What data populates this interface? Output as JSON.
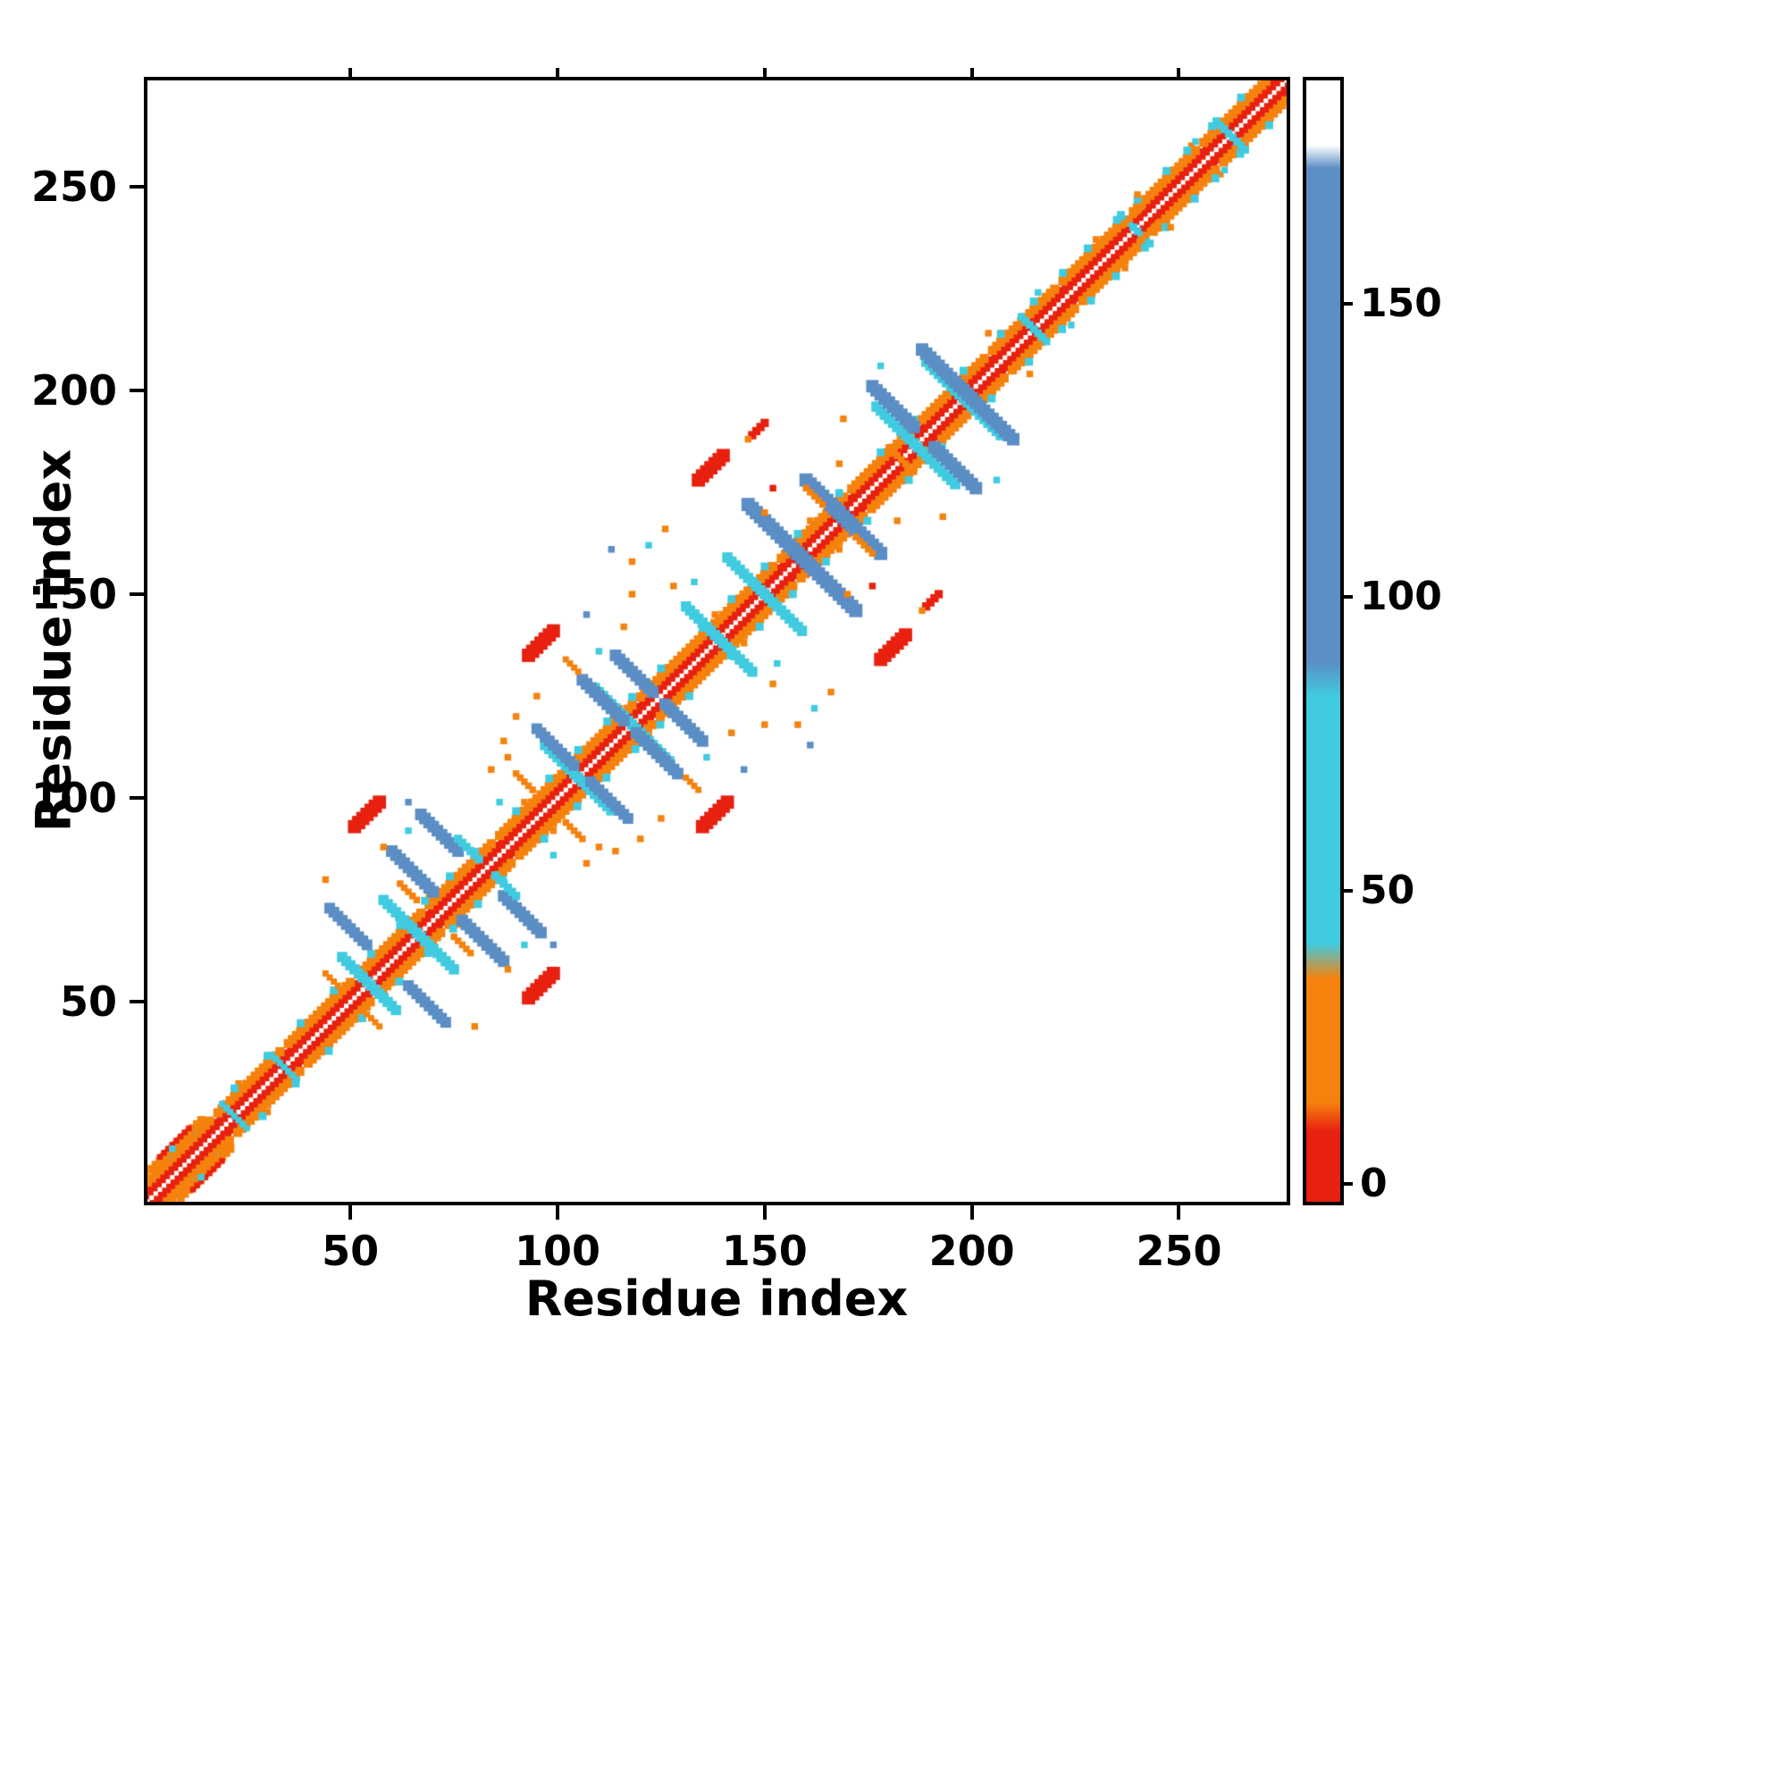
{
  "chart_data": {
    "type": "heatmap",
    "subtype": "protein-residue-contact-map",
    "title": "",
    "xlabel": "Residue index",
    "ylabel": "Residue index",
    "x_range": [
      1,
      276
    ],
    "y_range": [
      1,
      276
    ],
    "x_ticks": [
      50,
      100,
      150,
      200,
      250
    ],
    "y_ticks": [
      50,
      100,
      150,
      200,
      250
    ],
    "grid": false,
    "symmetric": true,
    "colors": {
      "red": "#e8200f",
      "orange": "#f5820d",
      "cyan": "#40cbe0",
      "blue": "#5b8ec4",
      "white": "#ffffff",
      "axis": "#000000",
      "background": "#ffffff"
    },
    "diagonal": {
      "core_color": "red",
      "core_halfwidth": 2.3,
      "center_gap_width": 1.1,
      "band_color": "orange",
      "band_offset": 4.8,
      "band_width": 2.2
    },
    "diagonal_cyan": [
      6,
      12,
      22,
      30,
      38,
      46,
      55,
      62,
      68,
      74,
      80,
      90,
      98,
      105,
      112,
      118,
      125,
      135,
      142,
      150,
      158,
      168,
      178,
      186,
      198,
      207,
      215,
      222,
      228,
      235,
      240,
      247,
      252,
      258,
      265,
      271
    ],
    "segments": [
      {
        "x1": 2,
        "y1": 9,
        "x2": 14,
        "y2": 21,
        "c": "orange",
        "w": 2.0
      },
      {
        "x1": 4,
        "y1": 12,
        "x2": 11,
        "y2": 19,
        "c": "red",
        "w": 1.4
      },
      {
        "x1": 48,
        "y1": 61,
        "x2": 61,
        "y2": 48,
        "c": "cyan",
        "w": 2.4
      },
      {
        "x1": 58,
        "y1": 75,
        "x2": 75,
        "y2": 58,
        "c": "cyan",
        "w": 2.4
      },
      {
        "x1": 45,
        "y1": 73,
        "x2": 54,
        "y2": 64,
        "c": "blue",
        "w": 2.6
      },
      {
        "x1": 60,
        "y1": 87,
        "x2": 70,
        "y2": 77,
        "c": "blue",
        "w": 2.8
      },
      {
        "x1": 67,
        "y1": 96,
        "x2": 76,
        "y2": 87,
        "c": "blue",
        "w": 2.8
      },
      {
        "x1": 76,
        "y1": 90,
        "x2": 81,
        "y2": 85,
        "c": "cyan",
        "w": 2.0
      },
      {
        "x1": 51,
        "y1": 93,
        "x2": 57,
        "y2": 99,
        "c": "red",
        "w": 3.2
      },
      {
        "x1": 62,
        "y1": 79,
        "x2": 66,
        "y2": 75,
        "c": "orange",
        "w": 1.6
      },
      {
        "x1": 44,
        "y1": 57,
        "x2": 47,
        "y2": 54,
        "c": "orange",
        "w": 1.5
      },
      {
        "x1": 97,
        "y1": 113,
        "x2": 113,
        "y2": 97,
        "c": "cyan",
        "w": 2.4
      },
      {
        "x1": 109,
        "y1": 127,
        "x2": 127,
        "y2": 109,
        "c": "cyan",
        "w": 2.4
      },
      {
        "x1": 95,
        "y1": 117,
        "x2": 104,
        "y2": 108,
        "c": "blue",
        "w": 2.6
      },
      {
        "x1": 106,
        "y1": 129,
        "x2": 116,
        "y2": 119,
        "c": "blue",
        "w": 2.8
      },
      {
        "x1": 114,
        "y1": 135,
        "x2": 123,
        "y2": 126,
        "c": "blue",
        "w": 2.8
      },
      {
        "x1": 93,
        "y1": 135,
        "x2": 99,
        "y2": 141,
        "c": "red",
        "w": 3.2
      },
      {
        "x1": 90,
        "y1": 106,
        "x2": 94,
        "y2": 102,
        "c": "orange",
        "w": 1.6
      },
      {
        "x1": 102,
        "y1": 134,
        "x2": 105,
        "y2": 131,
        "c": "orange",
        "w": 1.5
      },
      {
        "x1": 131,
        "y1": 147,
        "x2": 147,
        "y2": 131,
        "c": "cyan",
        "w": 2.4
      },
      {
        "x1": 141,
        "y1": 159,
        "x2": 159,
        "y2": 141,
        "c": "cyan",
        "w": 2.4
      },
      {
        "x1": 146,
        "y1": 172,
        "x2": 160,
        "y2": 158,
        "c": "blue",
        "w": 3.2
      },
      {
        "x1": 160,
        "y1": 178,
        "x2": 172,
        "y2": 166,
        "c": "blue",
        "w": 3.2
      },
      {
        "x1": 134,
        "y1": 178,
        "x2": 140,
        "y2": 184,
        "c": "red",
        "w": 3.2
      },
      {
        "x1": 147,
        "y1": 189,
        "x2": 150,
        "y2": 192,
        "c": "red",
        "w": 2.0
      },
      {
        "x1": 172,
        "y1": 164,
        "x2": 176,
        "y2": 160,
        "c": "orange",
        "w": 1.6
      },
      {
        "x1": 177,
        "y1": 196,
        "x2": 196,
        "y2": 177,
        "c": "cyan",
        "w": 2.4
      },
      {
        "x1": 189,
        "y1": 207,
        "x2": 207,
        "y2": 189,
        "c": "cyan",
        "w": 2.4
      },
      {
        "x1": 176,
        "y1": 201,
        "x2": 186,
        "y2": 191,
        "c": "blue",
        "w": 3.0
      },
      {
        "x1": 188,
        "y1": 210,
        "x2": 199,
        "y2": 199,
        "c": "blue",
        "w": 3.0
      },
      {
        "x1": 180,
        "y1": 186,
        "x2": 184,
        "y2": 182,
        "c": "orange",
        "w": 1.6
      },
      {
        "x1": 212,
        "y1": 218,
        "x2": 218,
        "y2": 212,
        "c": "cyan",
        "w": 1.8
      },
      {
        "x1": 236,
        "y1": 243,
        "x2": 243,
        "y2": 236,
        "c": "cyan",
        "w": 1.8
      },
      {
        "x1": 259,
        "y1": 266,
        "x2": 266,
        "y2": 259,
        "c": "cyan",
        "w": 1.8
      },
      {
        "x1": 237,
        "y1": 241,
        "x2": 241,
        "y2": 245,
        "c": "orange",
        "w": 1.6
      },
      {
        "x1": 19,
        "y1": 25,
        "x2": 24,
        "y2": 20,
        "c": "cyan",
        "w": 1.5
      },
      {
        "x1": 31,
        "y1": 37,
        "x2": 37,
        "y2": 31,
        "c": "cyan",
        "w": 1.5
      }
    ],
    "dots": [
      {
        "x": 7,
        "y": 14,
        "c": "cyan"
      },
      {
        "x": 44,
        "y": 80,
        "c": "orange"
      },
      {
        "x": 58,
        "y": 88,
        "c": "orange"
      },
      {
        "x": 64,
        "y": 92,
        "c": "cyan"
      },
      {
        "x": 64,
        "y": 99,
        "c": "blue"
      },
      {
        "x": 84,
        "y": 107,
        "c": "orange"
      },
      {
        "x": 87,
        "y": 114,
        "c": "orange"
      },
      {
        "x": 90,
        "y": 120,
        "c": "orange"
      },
      {
        "x": 95,
        "y": 125,
        "c": "orange"
      },
      {
        "x": 86,
        "y": 99,
        "c": "cyan"
      },
      {
        "x": 88,
        "y": 110,
        "c": "orange"
      },
      {
        "x": 107,
        "y": 145,
        "c": "blue"
      },
      {
        "x": 110,
        "y": 136,
        "c": "cyan"
      },
      {
        "x": 113,
        "y": 161,
        "c": "blue"
      },
      {
        "x": 116,
        "y": 142,
        "c": "orange"
      },
      {
        "x": 118,
        "y": 150,
        "c": "orange"
      },
      {
        "x": 118,
        "y": 158,
        "c": "orange"
      },
      {
        "x": 122,
        "y": 162,
        "c": "cyan"
      },
      {
        "x": 126,
        "y": 166,
        "c": "orange"
      },
      {
        "x": 128,
        "y": 152,
        "c": "orange"
      },
      {
        "x": 133,
        "y": 153,
        "c": "cyan"
      },
      {
        "x": 150,
        "y": 170,
        "c": "orange"
      },
      {
        "x": 146,
        "y": 188,
        "c": "orange"
      },
      {
        "x": 152,
        "y": 176,
        "c": "red"
      },
      {
        "x": 168,
        "y": 182,
        "c": "orange"
      },
      {
        "x": 169,
        "y": 193,
        "c": "orange"
      },
      {
        "x": 178,
        "y": 206,
        "c": "cyan"
      },
      {
        "x": 204,
        "y": 214,
        "c": "orange"
      },
      {
        "x": 216,
        "y": 224,
        "c": "cyan"
      },
      {
        "x": 240,
        "y": 248,
        "c": "orange"
      },
      {
        "x": 254,
        "y": 261,
        "c": "cyan"
      }
    ],
    "colorbar": {
      "position": "right",
      "ticks": [
        0,
        50,
        100,
        150
      ],
      "vmin": -3,
      "vmax": 188,
      "stops": [
        [
          -3,
          "#e8200f"
        ],
        [
          9,
          "#e8200f"
        ],
        [
          14,
          "#f5820d"
        ],
        [
          35,
          "#f5820d"
        ],
        [
          41,
          "#40cbe0"
        ],
        [
          83,
          "#40cbe0"
        ],
        [
          89,
          "#5b8ec4"
        ],
        [
          173,
          "#5b8ec4"
        ],
        [
          177,
          "#ffffff"
        ],
        [
          188,
          "#ffffff"
        ]
      ]
    }
  }
}
